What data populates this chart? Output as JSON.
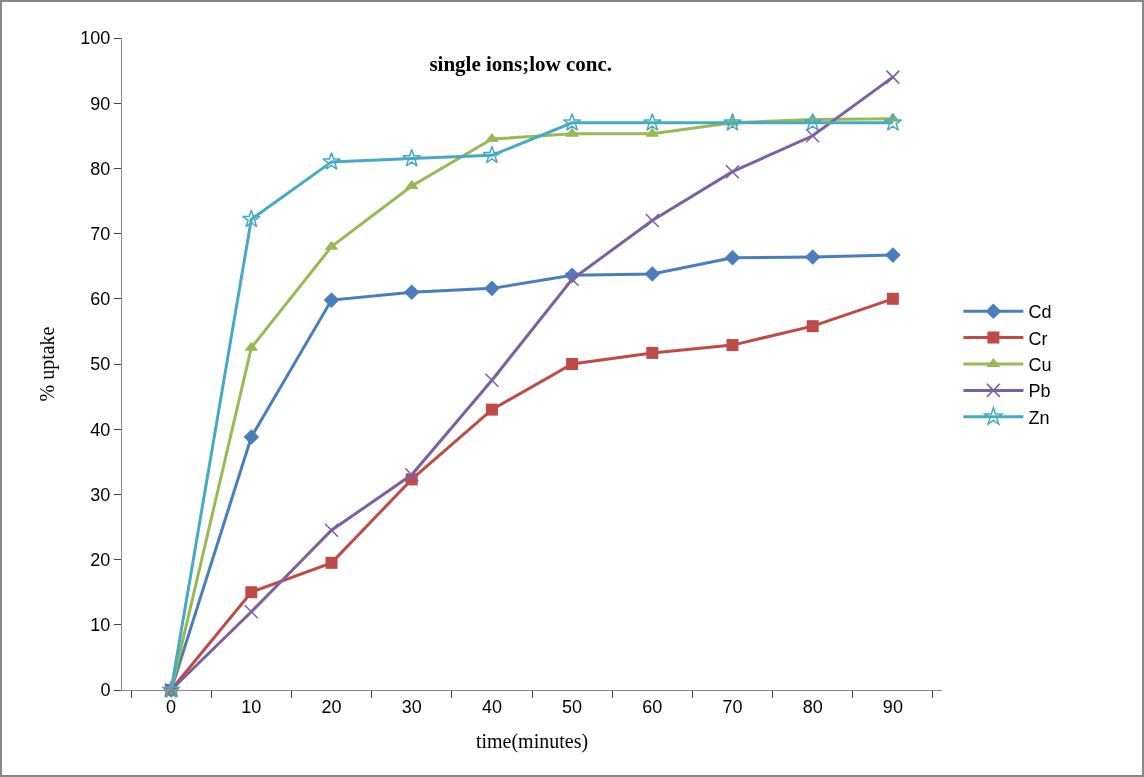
{
  "chart_data": {
    "type": "line",
    "title": "single ions;low conc.",
    "xlabel": "time(minutes)",
    "ylabel": "% uptake",
    "categories": [
      "0",
      "10",
      "20",
      "30",
      "40",
      "50",
      "60",
      "70",
      "80",
      "90"
    ],
    "series": [
      {
        "name": "Cd",
        "color": "#4a7ebb",
        "marker": "diamond",
        "values": [
          0,
          38.8,
          59.8,
          61,
          61.6,
          63.6,
          63.8,
          66.3,
          66.4,
          66.7
        ]
      },
      {
        "name": "Cr",
        "color": "#be4b48",
        "marker": "square",
        "values": [
          0,
          15,
          19.5,
          32.3,
          43,
          50,
          51.7,
          52.9,
          55.8,
          60
        ]
      },
      {
        "name": "Cu",
        "color": "#98b954",
        "marker": "triangle",
        "values": [
          0,
          52.5,
          68,
          77.3,
          84.5,
          85.3,
          85.3,
          87,
          87.5,
          87.6
        ]
      },
      {
        "name": "Pb",
        "color": "#7d60a0",
        "marker": "cross",
        "values": [
          0,
          12,
          24.5,
          33,
          47.5,
          63,
          72,
          79.5,
          85,
          94
        ]
      },
      {
        "name": "Zn",
        "color": "#46aac5",
        "marker": "star",
        "values": [
          0,
          72.2,
          81,
          81.5,
          82,
          87,
          87,
          87,
          87,
          87
        ]
      }
    ],
    "ylim": [
      0,
      100
    ],
    "yticks": [
      0,
      10,
      20,
      30,
      40,
      50,
      60,
      70,
      80,
      90,
      100
    ],
    "grid": false,
    "legend": "right",
    "line_style": "solid"
  }
}
